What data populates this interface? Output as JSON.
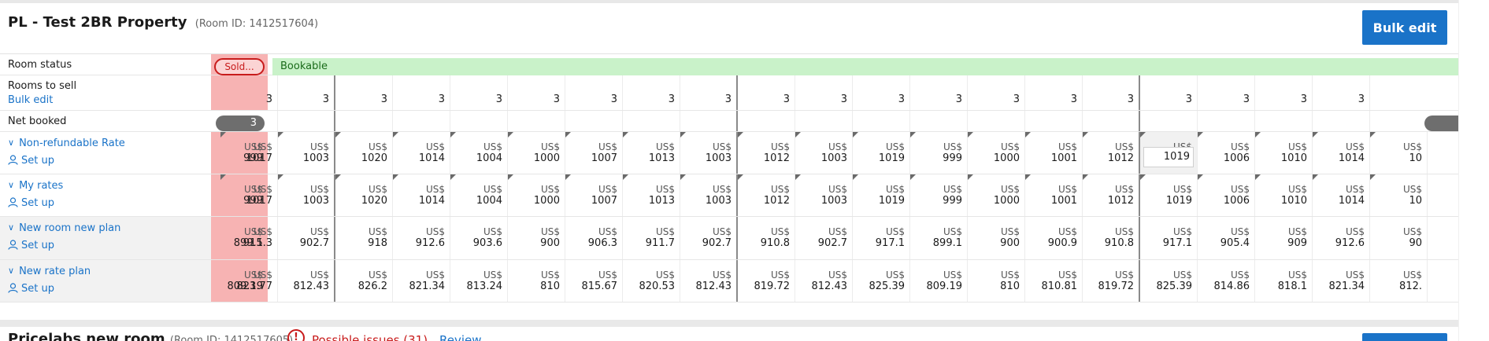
{
  "property": {
    "title": "PL - Test 2BR Property",
    "room_id": "(Room ID: 1412517604)",
    "bulk_edit_label": "Bulk edit"
  },
  "rows": {
    "room_status": {
      "label": "Room status",
      "today_status": "Sold...",
      "status": "Bookable"
    },
    "rooms_to_sell": {
      "label": "Rooms to sell",
      "link": "Bulk edit",
      "values": [
        "3",
        "3",
        "3",
        "3",
        "3",
        "3",
        "3",
        "3",
        "3",
        "3",
        "3",
        "3",
        "3",
        "3",
        "3",
        "3",
        "3",
        "3",
        "3",
        "3"
      ]
    },
    "net_booked": {
      "label": "Net booked",
      "today_value": "3"
    },
    "rate_plans": [
      {
        "name": "Non-refundable Rate",
        "setup": "Set up",
        "currency": "US$",
        "today_value": "999",
        "values": [
          "1017",
          "1003",
          "1020",
          "1014",
          "1004",
          "1000",
          "1007",
          "1013",
          "1003",
          "1012",
          "1003",
          "1019",
          "999",
          "1000",
          "1001",
          "1012",
          "1019",
          "1006",
          "1010",
          "1014",
          "10"
        ]
      },
      {
        "name": "My rates",
        "setup": "Set up",
        "currency": "US$",
        "today_value": "999",
        "values": [
          "1017",
          "1003",
          "1020",
          "1014",
          "1004",
          "1000",
          "1007",
          "1013",
          "1003",
          "1012",
          "1003",
          "1019",
          "999",
          "1000",
          "1001",
          "1012",
          "1019",
          "1006",
          "1010",
          "1014",
          "10"
        ]
      },
      {
        "name": "New room new plan",
        "setup": "Set up",
        "currency": "US$",
        "today_value": "899.1",
        "values": [
          "915.3",
          "902.7",
          "918",
          "912.6",
          "903.6",
          "900",
          "906.3",
          "911.7",
          "902.7",
          "910.8",
          "902.7",
          "917.1",
          "899.1",
          "900",
          "900.9",
          "910.8",
          "917.1",
          "905.4",
          "909",
          "912.6",
          "90"
        ]
      },
      {
        "name": "New rate plan",
        "setup": "Set up",
        "currency": "US$",
        "today_value": "809.19",
        "values": [
          "823.77",
          "812.43",
          "826.2",
          "821.34",
          "813.24",
          "810",
          "815.67",
          "820.53",
          "812.43",
          "819.72",
          "812.43",
          "825.39",
          "809.19",
          "810",
          "810.81",
          "819.72",
          "825.39",
          "814.86",
          "818.1",
          "821.34",
          "812."
        ]
      }
    ]
  },
  "next_property": {
    "title": "Pricelabs new room",
    "room_id": "(Room ID: 1412517605)",
    "issues": "Possible issues (31)",
    "review": "Review",
    "issue_icon": "!"
  },
  "colors": {
    "accent": "#1a73c8",
    "sold_out": "#c81c1c",
    "today_bg": "#f7b3b3",
    "bookable_bg": "#c9f2c9"
  }
}
